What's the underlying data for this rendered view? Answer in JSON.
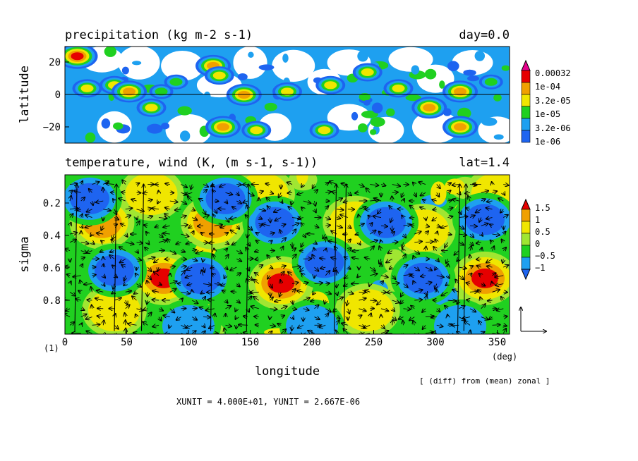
{
  "panels": {
    "top": {
      "title": "precipitation (kg m-2 s-1)",
      "right_label": "day=0.0",
      "ylabel": "latitude",
      "yticks": [
        "20",
        "0",
        "−20"
      ]
    },
    "bottom": {
      "title": "temperature, wind (K, (m s-1, s-1))",
      "right_label": "lat=1.4",
      "ylabel": "sigma",
      "yticks": [
        "0.2",
        "0.4",
        "0.6",
        "0.8"
      ],
      "xticks": [
        "0",
        "50",
        "100",
        "150",
        "200",
        "250",
        "300",
        "350"
      ],
      "xlabel": "longitude",
      "xunit": "(deg)",
      "frame_label": "(1)"
    }
  },
  "notes": {
    "zonal": "[ (diff) from (mean) zonal ]",
    "units": "XUNIT = 4.000E+01, YUNIT = 2.667E-06"
  },
  "colors": {
    "blue": "#1e64f0",
    "cyan": "#1ea0f0",
    "green": "#20d020",
    "lgreen": "#a0e632",
    "yellow": "#f0e600",
    "orange": "#f0a000",
    "red": "#e60000",
    "magenta": "#e6008c"
  },
  "chart_data": [
    {
      "type": "heatmap",
      "title": "precipitation (kg m-2 s-1)",
      "xlabel": "longitude",
      "ylabel": "latitude",
      "xlim": [
        0,
        360
      ],
      "ylim": [
        -30,
        30
      ],
      "legend": {
        "position": "right",
        "labels": [
          "0.00032",
          "1e-04",
          "3.2e-05",
          "1e-05",
          "3.2e-06",
          "1e-06"
        ]
      },
      "blobs": [
        {
          "lon": 10,
          "lat": 24,
          "level": 5
        },
        {
          "lon": 18,
          "lat": 4,
          "level": 3
        },
        {
          "lon": 40,
          "lat": 6,
          "level": 3
        },
        {
          "lon": 52,
          "lat": 2,
          "level": 4
        },
        {
          "lon": 70,
          "lat": -8,
          "level": 3
        },
        {
          "lon": 78,
          "lat": 2,
          "level": 2
        },
        {
          "lon": 90,
          "lat": 8,
          "level": 2
        },
        {
          "lon": 120,
          "lat": 18,
          "level": 4
        },
        {
          "lon": 125,
          "lat": 12,
          "level": 3
        },
        {
          "lon": 128,
          "lat": -20,
          "level": 4
        },
        {
          "lon": 145,
          "lat": 0,
          "level": 4
        },
        {
          "lon": 155,
          "lat": -22,
          "level": 3
        },
        {
          "lon": 180,
          "lat": 2,
          "level": 3
        },
        {
          "lon": 210,
          "lat": -22,
          "level": 3
        },
        {
          "lon": 215,
          "lat": 6,
          "level": 3
        },
        {
          "lon": 245,
          "lat": 14,
          "level": 3
        },
        {
          "lon": 270,
          "lat": 4,
          "level": 3
        },
        {
          "lon": 295,
          "lat": -8,
          "level": 4
        },
        {
          "lon": 320,
          "lat": 2,
          "level": 4
        },
        {
          "lon": 320,
          "lat": -20,
          "level": 4
        },
        {
          "lon": 345,
          "lat": 8,
          "level": 2
        }
      ]
    },
    {
      "type": "heatmap",
      "title": "temperature, wind (K, (m s-1, s-1))",
      "xlabel": "longitude",
      "ylabel": "sigma",
      "xlim": [
        0,
        360
      ],
      "ylim": [
        1.0,
        0.0
      ],
      "legend": {
        "position": "right",
        "labels": [
          "1.5",
          "1",
          "0.5",
          "0",
          "−0.5",
          "−1"
        ]
      },
      "vector_key": {
        "xunit": "4.000E+01",
        "yunit": "2.667E-06"
      },
      "blobs": [
        {
          "lon": 80,
          "sigma": 0.65,
          "value": 1.8
        },
        {
          "lon": 175,
          "sigma": 0.68,
          "value": 2.0
        },
        {
          "lon": 340,
          "sigma": 0.65,
          "value": 1.8
        },
        {
          "lon": 30,
          "sigma": 0.3,
          "value": 1.3
        },
        {
          "lon": 120,
          "sigma": 0.3,
          "value": 1.4
        },
        {
          "lon": 235,
          "sigma": 0.3,
          "value": 1.0
        },
        {
          "lon": 290,
          "sigma": 0.35,
          "value": 1.0
        },
        {
          "lon": 245,
          "sigma": 0.85,
          "value": 1.2
        },
        {
          "lon": 40,
          "sigma": 0.85,
          "value": 1.0
        },
        {
          "lon": 160,
          "sigma": 0.12,
          "value": 1.2
        },
        {
          "lon": 70,
          "sigma": 0.12,
          "value": 1.0
        },
        {
          "lon": 350,
          "sigma": 0.12,
          "value": 1.0
        },
        {
          "lon": 170,
          "sigma": 0.3,
          "value": -1.8
        },
        {
          "lon": 110,
          "sigma": 0.65,
          "value": -1.6
        },
        {
          "lon": 260,
          "sigma": 0.3,
          "value": -1.6
        },
        {
          "lon": 40,
          "sigma": 0.6,
          "value": -1.5
        },
        {
          "lon": 290,
          "sigma": 0.65,
          "value": -1.6
        },
        {
          "lon": 210,
          "sigma": 0.55,
          "value": -1.5
        },
        {
          "lon": 340,
          "sigma": 0.28,
          "value": -1.4
        },
        {
          "lon": 20,
          "sigma": 0.15,
          "value": -1.4
        },
        {
          "lon": 130,
          "sigma": 0.15,
          "value": -1.5
        },
        {
          "lon": 320,
          "sigma": 0.95,
          "value": -1.0
        },
        {
          "lon": 100,
          "sigma": 0.95,
          "value": -1.2
        },
        {
          "lon": 200,
          "sigma": 0.95,
          "value": -1.0
        }
      ],
      "updrafts_lon": [
        8,
        40,
        62,
        118,
        147,
        218,
        226,
        318,
        323
      ]
    }
  ]
}
